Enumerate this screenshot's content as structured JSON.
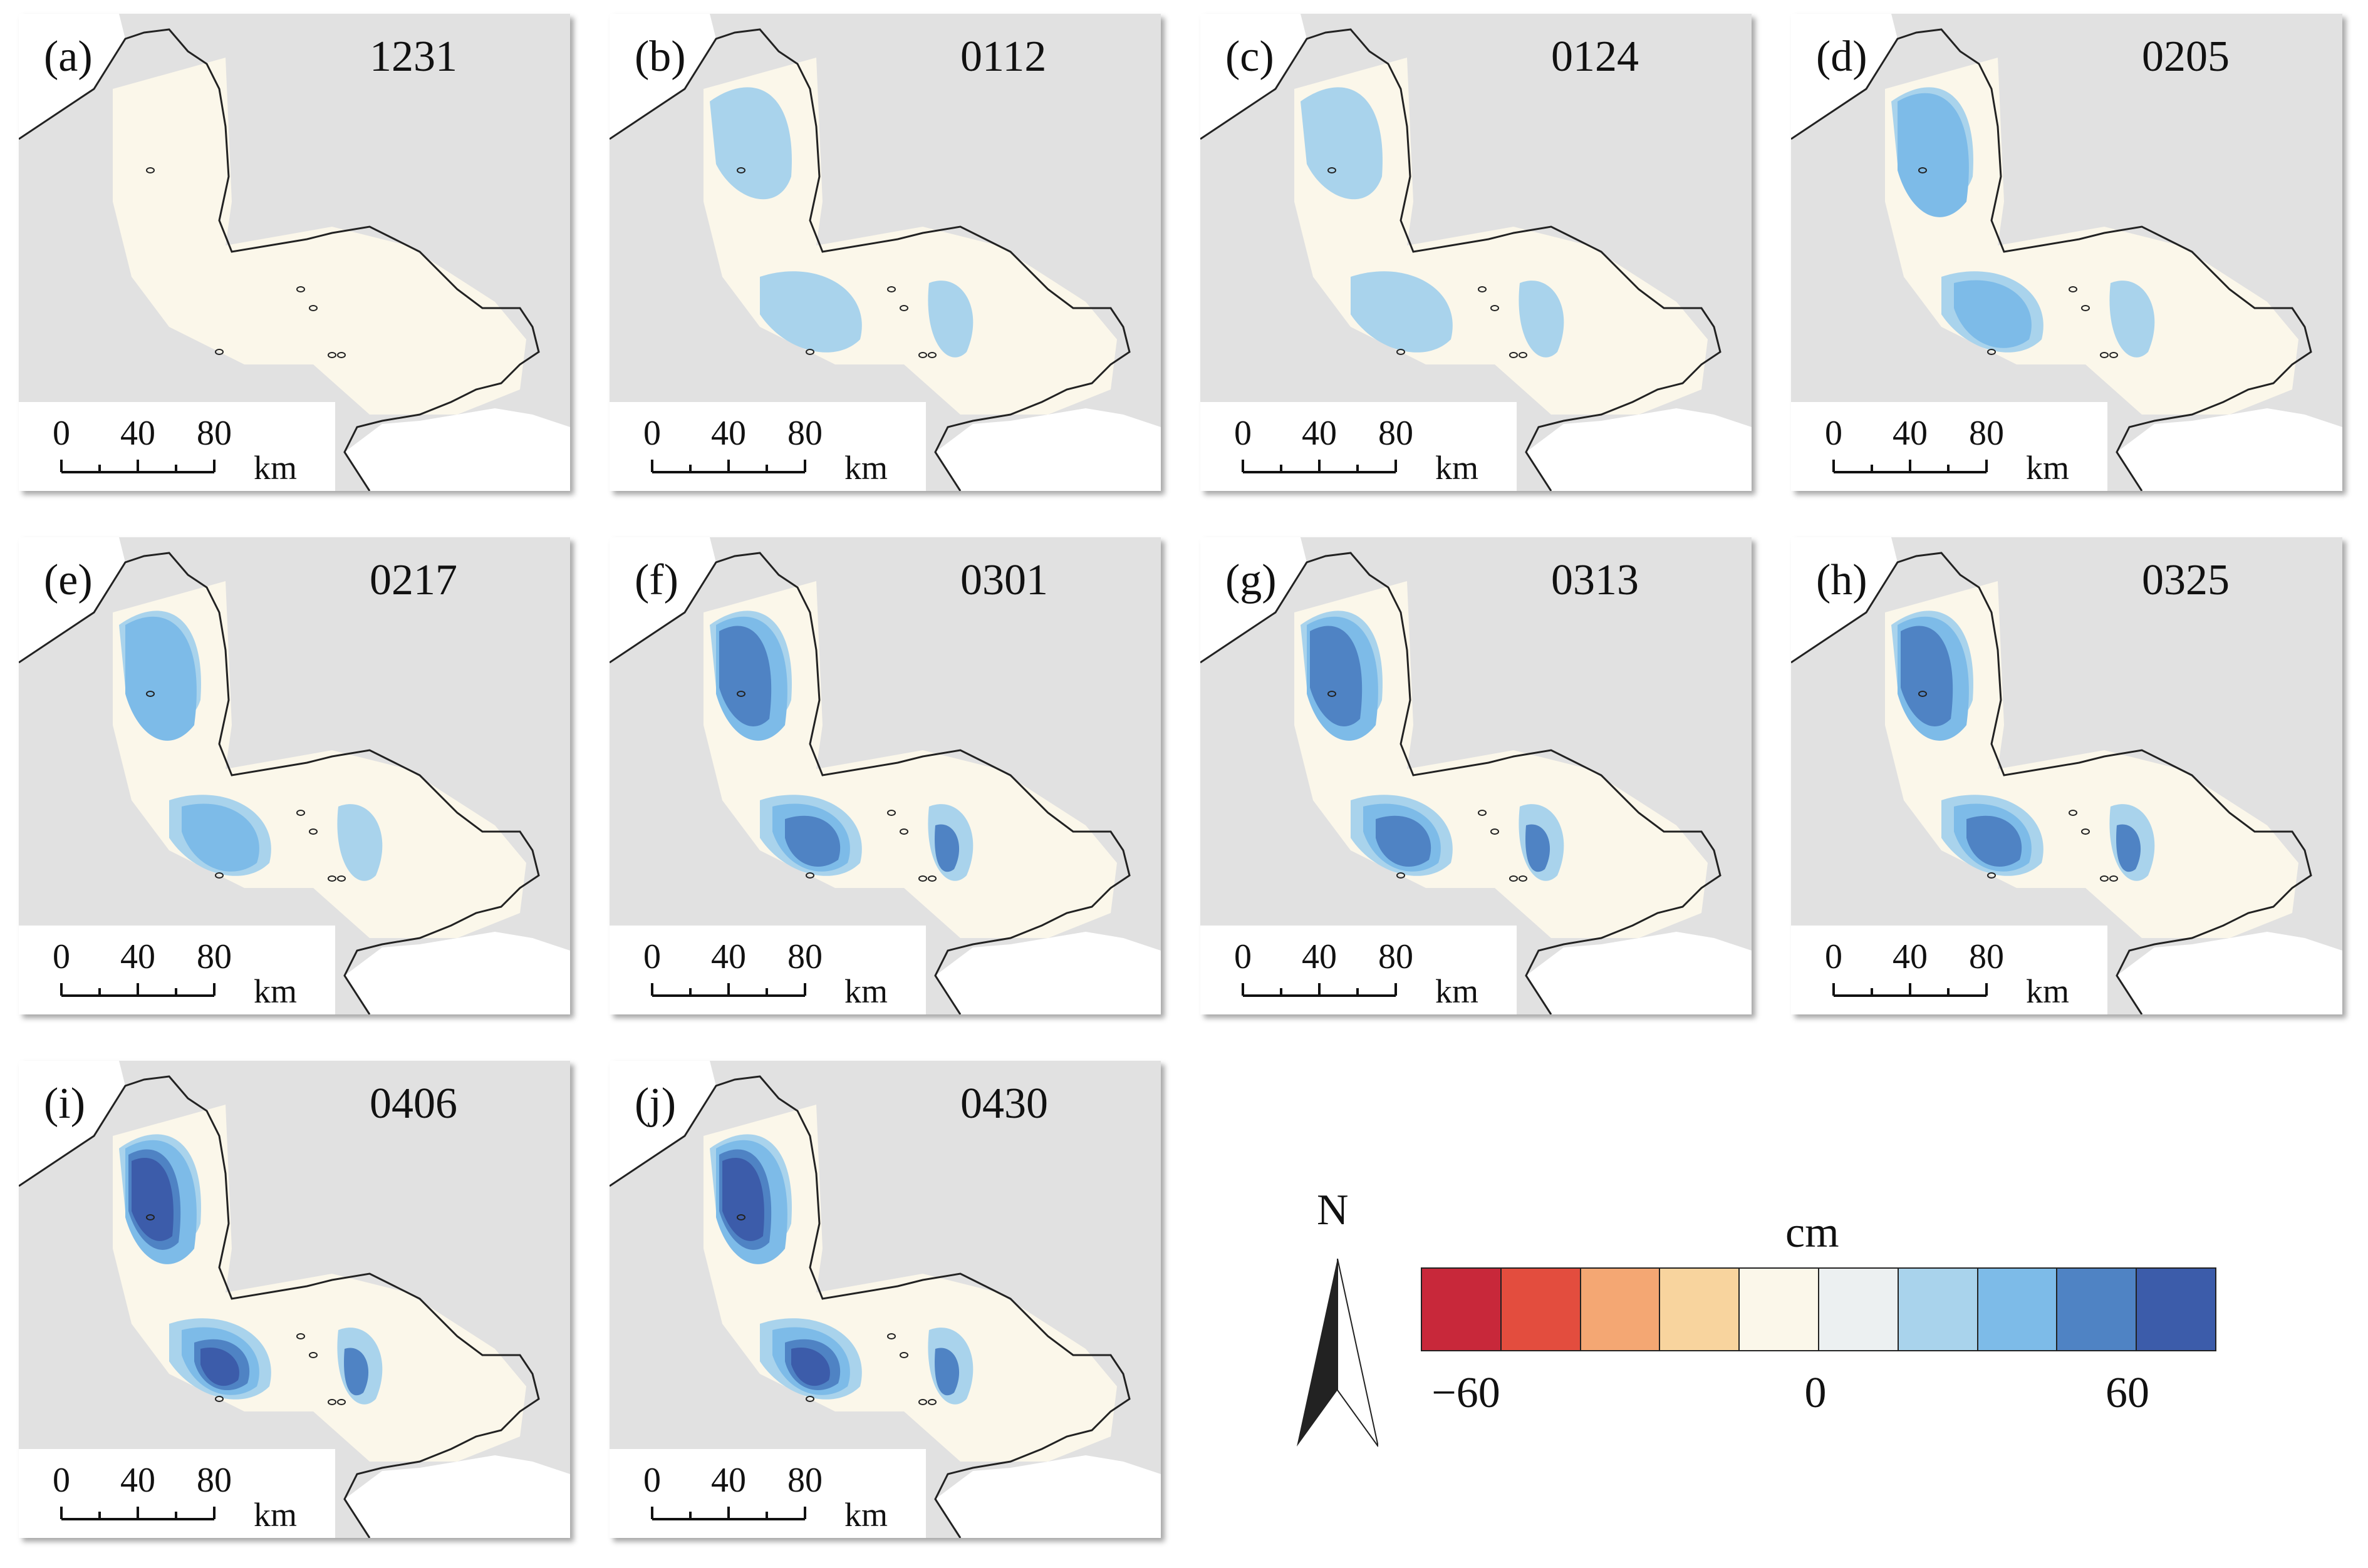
{
  "panels": [
    {
      "letter": "(a)",
      "date": "1231",
      "level": 0
    },
    {
      "letter": "(b)",
      "date": "0112",
      "level": 1
    },
    {
      "letter": "(c)",
      "date": "0124",
      "level": 1
    },
    {
      "letter": "(d)",
      "date": "0205",
      "level": 2
    },
    {
      "letter": "(e)",
      "date": "0217",
      "level": 2
    },
    {
      "letter": "(f)",
      "date": "0301",
      "level": 3
    },
    {
      "letter": "(g)",
      "date": "0313",
      "level": 3
    },
    {
      "letter": "(h)",
      "date": "0325",
      "level": 3
    },
    {
      "letter": "(i)",
      "date": "0406",
      "level": 4
    },
    {
      "letter": "(j)",
      "date": "0430",
      "level": 4
    }
  ],
  "scale_bar": {
    "ticks": [
      "0",
      "40",
      "80"
    ],
    "unit": "km"
  },
  "north_arrow": {
    "label": "N"
  },
  "legend": {
    "unit": "cm",
    "tick_labels": [
      "−60",
      "0",
      "60"
    ],
    "colors": [
      "#c8283a",
      "#e34d3e",
      "#f4a773",
      "#f8d49e",
      "#fbf7ea",
      "#ecf0f1",
      "#a9d3ec",
      "#7dbbe8",
      "#4f83c4",
      "#3c5caa"
    ]
  },
  "colors": {
    "land_gray": "#e1e1e1",
    "sea_white": "#ffffff",
    "ice_base": "#fbf7ea",
    "coast": "#222222"
  }
}
